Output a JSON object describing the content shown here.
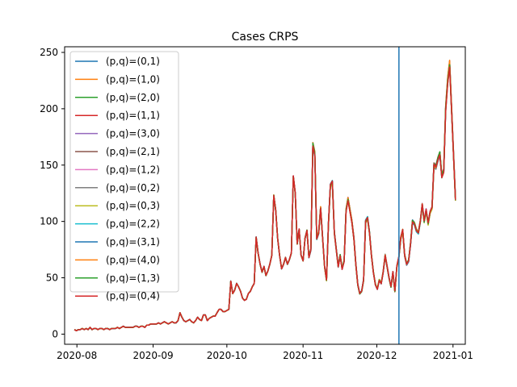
{
  "chart_data": {
    "type": "line",
    "title": "Cases CRPS",
    "xlabel": "",
    "ylabel": "",
    "x_start": "2020-07-31",
    "x_end": "2021-01-02",
    "xlim": [
      "2020-07-27",
      "2021-01-06"
    ],
    "ylim": [
      -9,
      255
    ],
    "yticks": [
      0,
      50,
      100,
      150,
      200,
      250
    ],
    "xticks": [
      {
        "date": "2020-08-01",
        "label": "2020-08"
      },
      {
        "date": "2020-09-01",
        "label": "2020-09"
      },
      {
        "date": "2020-10-01",
        "label": "2020-10"
      },
      {
        "date": "2020-11-01",
        "label": "2020-11"
      },
      {
        "date": "2020-12-01",
        "label": "2020-12"
      },
      {
        "date": "2021-01-01",
        "label": "2021-01"
      }
    ],
    "vline": {
      "date": "2020-12-10",
      "color": "#1f77b4"
    },
    "legend_placement": "upper left",
    "base_values": [
      4,
      3,
      4,
      4,
      5,
      4,
      5,
      4,
      6,
      4,
      5,
      5,
      4,
      5,
      5,
      4,
      5,
      5,
      4,
      5,
      5,
      5,
      6,
      5,
      6,
      7,
      6,
      6,
      6,
      6,
      6,
      7,
      7,
      6,
      7,
      7,
      6,
      8,
      8,
      9,
      9,
      9,
      9,
      10,
      9,
      10,
      11,
      10,
      9,
      10,
      11,
      10,
      10,
      12,
      19,
      15,
      12,
      11,
      12,
      13,
      11,
      10,
      12,
      15,
      13,
      12,
      17,
      17,
      12,
      14,
      15,
      16,
      16,
      19,
      22,
      22,
      20,
      20,
      21,
      22,
      47,
      36,
      39,
      45,
      42,
      38,
      32,
      30,
      31,
      36,
      38,
      42,
      45,
      86,
      72,
      62,
      55,
      60,
      52,
      56,
      62,
      70,
      123,
      110,
      85,
      70,
      58,
      62,
      68,
      62,
      66,
      72,
      140,
      125,
      80,
      93,
      70,
      65,
      85,
      92,
      68,
      75,
      168,
      160,
      85,
      90,
      112,
      85,
      60,
      48,
      98,
      132,
      135,
      90,
      75,
      60,
      70,
      58,
      65,
      110,
      120,
      110,
      100,
      85,
      62,
      44,
      36,
      38,
      48,
      100,
      103,
      90,
      70,
      55,
      44,
      40,
      48,
      45,
      55,
      70,
      60,
      50,
      42,
      55,
      38,
      60,
      68,
      85,
      92,
      70,
      62,
      65,
      80,
      100,
      98,
      92,
      90,
      100,
      115,
      100,
      110,
      98,
      108,
      112,
      150,
      148,
      155,
      160,
      140,
      145,
      200,
      225,
      240,
      200,
      160,
      120
    ]
  },
  "series": [
    {
      "name": "(p,q)=(0,1)",
      "color": "#1f77b4"
    },
    {
      "name": "(p,q)=(1,0)",
      "color": "#ff7f0e"
    },
    {
      "name": "(p,q)=(2,0)",
      "color": "#2ca02c"
    },
    {
      "name": "(p,q)=(1,1)",
      "color": "#d62728"
    },
    {
      "name": "(p,q)=(3,0)",
      "color": "#9467bd"
    },
    {
      "name": "(p,q)=(2,1)",
      "color": "#8c564b"
    },
    {
      "name": "(p,q)=(1,2)",
      "color": "#e377c2"
    },
    {
      "name": "(p,q)=(0,2)",
      "color": "#7f7f7f"
    },
    {
      "name": "(p,q)=(0,3)",
      "color": "#bcbd22"
    },
    {
      "name": "(p,q)=(2,2)",
      "color": "#17becf"
    },
    {
      "name": "(p,q)=(3,1)",
      "color": "#1f77b4"
    },
    {
      "name": "(p,q)=(4,0)",
      "color": "#ff7f0e"
    },
    {
      "name": "(p,q)=(1,3)",
      "color": "#2ca02c"
    },
    {
      "name": "(p,q)=(0,4)",
      "color": "#d62728"
    }
  ]
}
